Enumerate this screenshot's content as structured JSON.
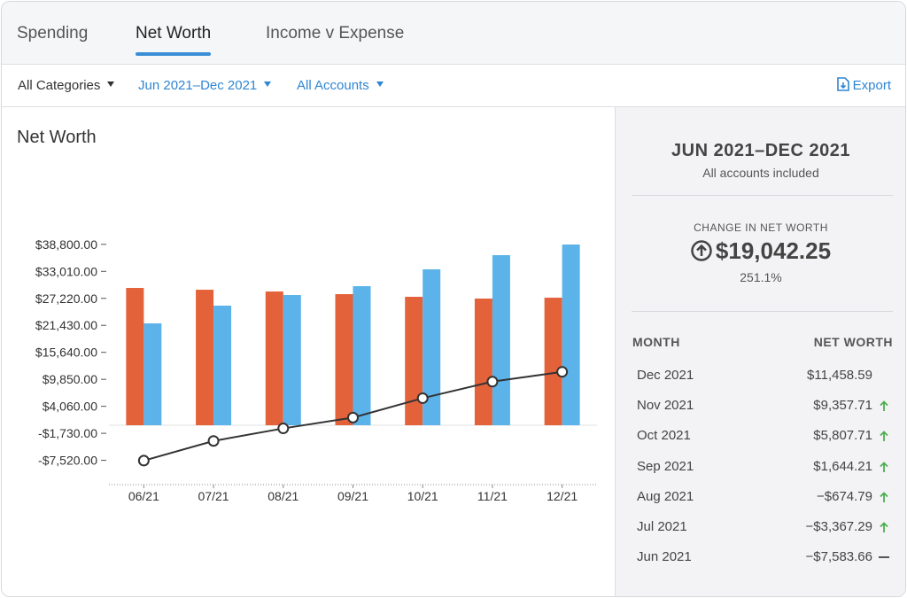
{
  "tabs": [
    "Spending",
    "Net Worth",
    "Income v Expense"
  ],
  "active_tab": 1,
  "filters": [
    "All Categories",
    "Jun 2021–Dec 2021",
    "All Accounts"
  ],
  "export": "Export",
  "chart_data": {
    "type": "bar",
    "title": "Net Worth",
    "categories": [
      "06/21",
      "07/21",
      "08/21",
      "09/21",
      "10/21",
      "11/21",
      "12/21"
    ],
    "series": [
      {
        "color": "#e4623a",
        "values": [
          29450,
          29070,
          28690,
          28120,
          27550,
          27170,
          27360
        ]
      },
      {
        "color": "#5bb3ea",
        "values": [
          21850,
          25650,
          27930,
          29830,
          33440,
          36480,
          38760
        ]
      },
      {
        "type": "line",
        "color": "#333333",
        "values": [
          -7583.66,
          -3367.29,
          -674.79,
          1644.21,
          5807.71,
          9357.71,
          11458.59
        ]
      }
    ],
    "ylim": [
      -12730,
      40000
    ],
    "yticks": [
      {
        "value": 38800,
        "label": "$38,800.00"
      },
      {
        "value": 33010,
        "label": "$33,010.00"
      },
      {
        "value": 27220,
        "label": "$27,220.00"
      },
      {
        "value": 21430,
        "label": "$21,430.00"
      },
      {
        "value": 15640,
        "label": "$15,640.00"
      },
      {
        "value": 9850,
        "label": "$9,850.00"
      },
      {
        "value": 4060,
        "label": "$4,060.00"
      },
      {
        "value": -1730,
        "label": "-$1,730.00"
      },
      {
        "value": -7520,
        "label": "-$7,520.00"
      }
    ]
  },
  "summary": {
    "period": "JUN 2021–DEC 2021",
    "subtitle": "All accounts included",
    "change_label": "CHANGE IN NET WORTH",
    "change": "$19,042.25",
    "percent": "251.1%"
  },
  "table": {
    "columns": [
      "MONTH",
      "NET WORTH"
    ],
    "rows": [
      {
        "month": "Dec 2021",
        "value": "$11,458.59",
        "trend": null
      },
      {
        "month": "Nov 2021",
        "value": "$9,357.71",
        "trend": "up"
      },
      {
        "month": "Oct 2021",
        "value": "$5,807.71",
        "trend": "up"
      },
      {
        "month": "Sep 2021",
        "value": "$1,644.21",
        "trend": "up"
      },
      {
        "month": "Aug 2021",
        "value": "−$674.79",
        "trend": "up"
      },
      {
        "month": "Jul 2021",
        "value": "−$3,367.29",
        "trend": "up"
      },
      {
        "month": "Jun 2021",
        "value": "−$7,583.66",
        "trend": "flat"
      }
    ]
  }
}
